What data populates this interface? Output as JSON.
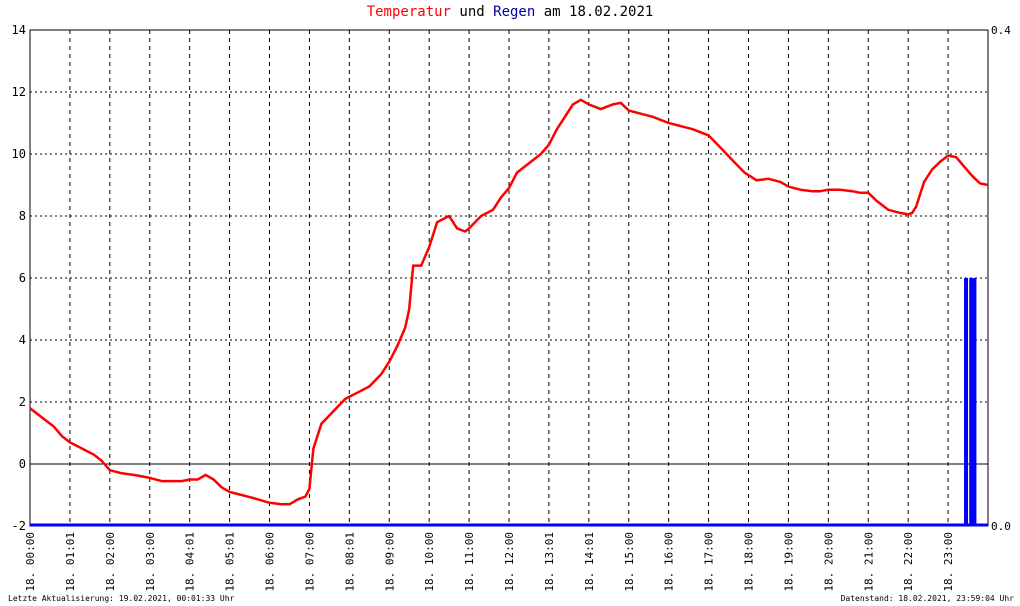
{
  "title": {
    "part1": "Temperatur",
    "part2": " und ",
    "part3": "Regen",
    "part4": " am 18.02.2021",
    "color_temperature": "#ff0000",
    "color_rain": "#0000a0"
  },
  "footer": {
    "left": "Letzte Aktualisierung: 19.02.2021, 00:01:33 Uhr",
    "right": "Datenstand: 18.02.2021, 23:59:04 Uhr"
  },
  "chart_data": {
    "type": "line",
    "title": "Temperatur und Regen am 18.02.2021",
    "x_unit": "hours",
    "xlim": [
      0,
      24
    ],
    "ylim": [
      -2,
      14
    ],
    "y2lim": [
      0,
      0.4
    ],
    "yticks": [
      "14",
      "12",
      "10",
      "8",
      "6",
      "4",
      "2",
      "0",
      "-2"
    ],
    "y2ticks": [
      "0.4",
      "0.0"
    ],
    "xtick_labels": [
      "18. 00:00",
      "18. 01:01",
      "18. 02:00",
      "18. 03:00",
      "18. 04:01",
      "18. 05:01",
      "18. 06:00",
      "18. 07:00",
      "18. 08:01",
      "18. 09:00",
      "18. 10:00",
      "18. 11:00",
      "18. 12:00",
      "18. 13:01",
      "18. 14:01",
      "18. 15:00",
      "18. 16:00",
      "18. 17:00",
      "18. 18:00",
      "18. 19:00",
      "18. 20:00",
      "18. 21:00",
      "18. 22:00",
      "18. 23:00"
    ],
    "grid": true,
    "series": [
      {
        "name": "Temperatur",
        "axis": "left",
        "color": "#ff0000",
        "x": [
          0,
          0.3,
          0.6,
          0.8,
          1.0,
          1.3,
          1.6,
          1.8,
          2.0,
          2.3,
          2.6,
          2.8,
          3.0,
          3.3,
          3.6,
          3.8,
          4.0,
          4.2,
          4.4,
          4.6,
          4.8,
          5.0,
          5.3,
          5.6,
          6.0,
          6.3,
          6.5,
          6.7,
          6.9,
          7.0,
          7.1,
          7.3,
          7.6,
          7.9,
          8.2,
          8.5,
          8.8,
          9.0,
          9.2,
          9.4,
          9.5,
          9.6,
          9.8,
          10.0,
          10.2,
          10.5,
          10.7,
          10.9,
          11.0,
          11.3,
          11.6,
          11.8,
          12.0,
          12.2,
          12.5,
          12.8,
          13.0,
          13.2,
          13.4,
          13.6,
          13.8,
          14.0,
          14.3,
          14.6,
          14.8,
          15.0,
          15.3,
          15.6,
          15.8,
          16.0,
          16.3,
          16.6,
          16.8,
          17.0,
          17.3,
          17.6,
          17.9,
          18.2,
          18.5,
          18.8,
          19.0,
          19.3,
          19.6,
          19.8,
          20.0,
          20.3,
          20.6,
          20.8,
          21.0,
          21.2,
          21.5,
          21.8,
          22.0,
          22.1,
          22.2,
          22.4,
          22.6,
          22.8,
          23.0,
          23.2,
          23.4,
          23.6,
          23.8,
          24.0
        ],
        "y": [
          1.8,
          1.5,
          1.2,
          0.9,
          0.7,
          0.5,
          0.3,
          0.1,
          -0.2,
          -0.3,
          -0.35,
          -0.4,
          -0.45,
          -0.55,
          -0.55,
          -0.55,
          -0.5,
          -0.5,
          -0.35,
          -0.5,
          -0.75,
          -0.9,
          -1.0,
          -1.1,
          -1.25,
          -1.3,
          -1.3,
          -1.15,
          -1.05,
          -0.8,
          0.5,
          1.3,
          1.7,
          2.1,
          2.3,
          2.5,
          2.9,
          3.3,
          3.8,
          4.4,
          5.0,
          6.4,
          6.4,
          7.0,
          7.8,
          8.0,
          7.6,
          7.5,
          7.6,
          8.0,
          8.2,
          8.6,
          8.9,
          9.4,
          9.7,
          10.0,
          10.3,
          10.8,
          11.2,
          11.6,
          11.75,
          11.6,
          11.45,
          11.6,
          11.65,
          11.4,
          11.3,
          11.2,
          11.1,
          11.0,
          10.9,
          10.8,
          10.7,
          10.6,
          10.2,
          9.8,
          9.4,
          9.15,
          9.2,
          9.1,
          8.95,
          8.85,
          8.8,
          8.8,
          8.85,
          8.85,
          8.8,
          8.75,
          8.75,
          8.5,
          8.2,
          8.1,
          8.05,
          8.1,
          8.3,
          9.1,
          9.5,
          9.75,
          9.95,
          9.9,
          9.6,
          9.3,
          9.05,
          9.0
        ]
      },
      {
        "name": "Regen",
        "axis": "right",
        "type": "bar",
        "color": "#0000ff",
        "bars": [
          {
            "x": 23.45,
            "value": 0.2
          },
          {
            "x": 23.58,
            "value": 0.2
          },
          {
            "x": 23.66,
            "value": 0.2
          }
        ]
      }
    ]
  }
}
